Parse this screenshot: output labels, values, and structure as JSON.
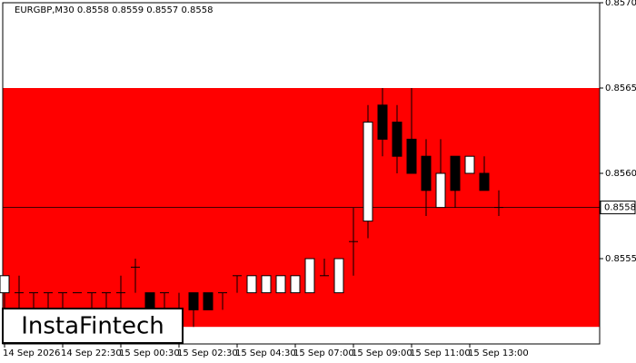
{
  "chart_data": {
    "type": "candlestick",
    "title": "EURGBP,M30  0.8558 0.8559 0.8557 0.8558",
    "categories": [
      "14 Sep 2026",
      null,
      null,
      null,
      "14 Sep 22:30",
      null,
      null,
      null,
      "15 Sep 00:30",
      null,
      null,
      null,
      "15 Sep 02:30",
      null,
      null,
      null,
      "15 Sep 04:30",
      null,
      null,
      null,
      "15 Sep 07:00",
      null,
      null,
      null,
      "15 Sep 09:00",
      null,
      null,
      null,
      "15 Sep 11:00",
      null,
      null,
      null,
      "15 Sep 13:00",
      null,
      null
    ],
    "open": [
      0.8553,
      0.8553,
      0.8553,
      0.8553,
      0.8553,
      0.8553,
      0.8553,
      0.8553,
      0.8553,
      0.85545,
      0.8553,
      0.8553,
      0.8552,
      0.8553,
      0.8553,
      0.8553,
      0.8554,
      0.8553,
      0.8553,
      0.8553,
      0.8553,
      0.8553,
      0.8554,
      0.8553,
      0.8556,
      0.85572,
      0.8564,
      0.8563,
      0.8562,
      0.8561,
      0.8558,
      0.8561,
      0.856,
      0.856,
      0.8558
    ],
    "high": [
      0.8554,
      0.8554,
      0.8553,
      0.8553,
      0.8553,
      0.8553,
      0.8553,
      0.8553,
      0.8554,
      0.8555,
      0.8553,
      0.8553,
      0.8553,
      0.8553,
      0.8553,
      0.8553,
      0.8554,
      0.8554,
      0.8554,
      0.8554,
      0.8554,
      0.8555,
      0.8555,
      0.8555,
      0.8558,
      0.8564,
      0.8565,
      0.8564,
      0.8565,
      0.8562,
      0.8562,
      0.8561,
      0.8561,
      0.8561,
      0.8559
    ],
    "low": [
      0.8552,
      0.8551,
      0.8551,
      0.8551,
      0.8552,
      0.8553,
      0.8552,
      0.8552,
      0.8552,
      0.8553,
      0.8551,
      0.8551,
      0.8551,
      0.8551,
      0.8552,
      0.8552,
      0.8553,
      0.8553,
      0.8553,
      0.8553,
      0.8553,
      0.8553,
      0.8554,
      0.8553,
      0.8554,
      0.85562,
      0.8561,
      0.856,
      0.856,
      0.85575,
      0.8558,
      0.8558,
      0.856,
      0.8559,
      0.85575
    ],
    "close": [
      0.8554,
      0.8553,
      0.8553,
      0.8553,
      0.8553,
      0.8553,
      0.8553,
      0.8553,
      0.8553,
      0.85545,
      0.8552,
      0.8553,
      0.8552,
      0.8552,
      0.8552,
      0.8553,
      0.8554,
      0.8554,
      0.8554,
      0.8554,
      0.8554,
      0.8555,
      0.8554,
      0.8555,
      0.8556,
      0.8563,
      0.8562,
      0.8561,
      0.856,
      0.8559,
      0.856,
      0.8559,
      0.8561,
      0.8559,
      0.8558
    ],
    "zone": [
      0.8551,
      0.8565
    ],
    "zone_color": "#ff0000",
    "current_price": {
      "value": 0.8558,
      "label": "0.8558"
    },
    "ylim": [
      0.855,
      0.857
    ],
    "yticks": [
      {
        "value": 0.8555,
        "label": "0.8555"
      },
      {
        "value": 0.856,
        "label": "0.8560"
      },
      {
        "value": 0.8565,
        "label": "0.8565"
      },
      {
        "value": 0.857,
        "label": "0.8570"
      }
    ],
    "logo": "InstaFintech"
  }
}
